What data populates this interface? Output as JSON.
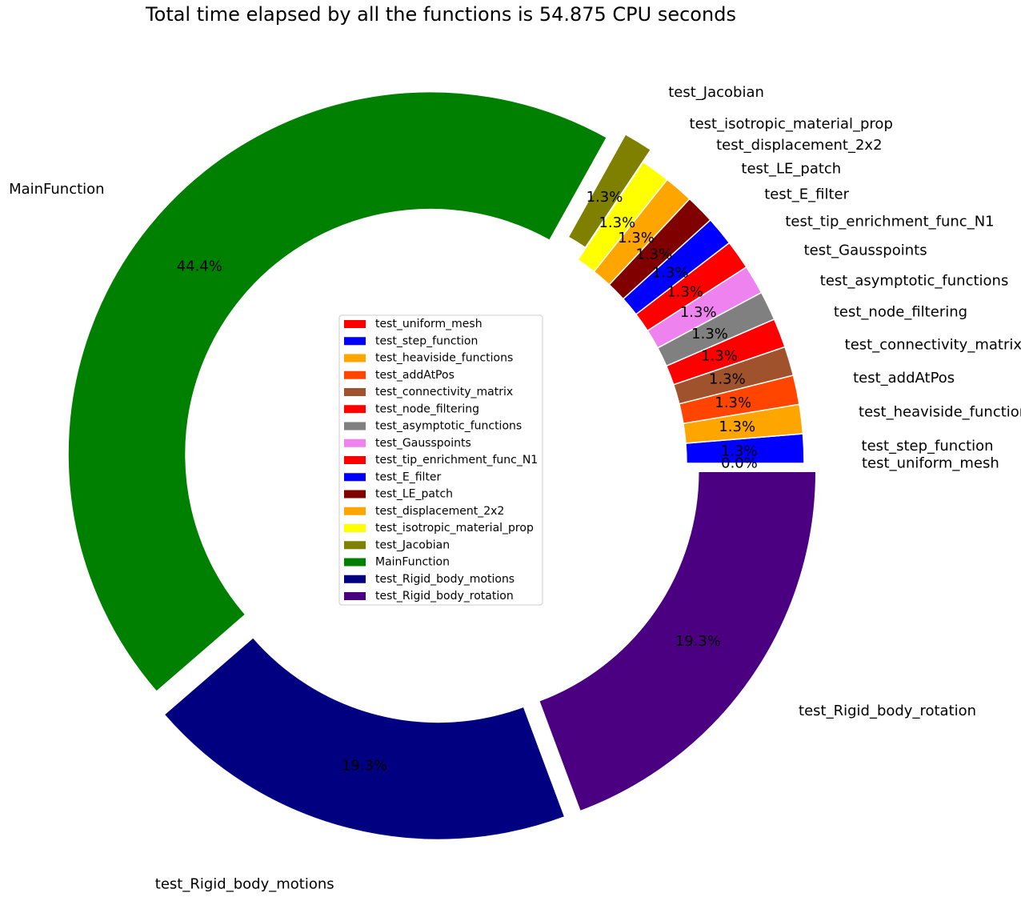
{
  "chart_data": {
    "type": "pie",
    "variant": "donut",
    "title": "Total time elapsed by all the functions is 54.875 CPU seconds",
    "legend_location": "center",
    "start_angle_deg": 0,
    "direction": "counterclockwise",
    "slices": [
      {
        "label": "test_uniform_mesh",
        "percent": 0.0,
        "percent_label": "0.0%",
        "color": "#ff0000",
        "exploded": false
      },
      {
        "label": "test_step_function",
        "percent": 1.3,
        "percent_label": "1.3%",
        "color": "#0000ff",
        "exploded": false
      },
      {
        "label": "test_heaviside_functions",
        "percent": 1.3,
        "percent_label": "1.3%",
        "color": "#ffa500",
        "exploded": false
      },
      {
        "label": "test_addAtPos",
        "percent": 1.3,
        "percent_label": "1.3%",
        "color": "#ff4500",
        "exploded": false
      },
      {
        "label": "test_connectivity_matrix",
        "percent": 1.3,
        "percent_label": "1.3%",
        "color": "#a0522d",
        "exploded": false
      },
      {
        "label": "test_node_filtering",
        "percent": 1.3,
        "percent_label": "1.3%",
        "color": "#ff0000",
        "exploded": false
      },
      {
        "label": "test_asymptotic_functions",
        "percent": 1.3,
        "percent_label": "1.3%",
        "color": "#808080",
        "exploded": false
      },
      {
        "label": "test_Gausspoints",
        "percent": 1.3,
        "percent_label": "1.3%",
        "color": "#ee82ee",
        "exploded": false
      },
      {
        "label": "test_tip_enrichment_func_N1",
        "percent": 1.3,
        "percent_label": "1.3%",
        "color": "#ff0000",
        "exploded": false
      },
      {
        "label": "test_E_filter",
        "percent": 1.3,
        "percent_label": "1.3%",
        "color": "#0000ff",
        "exploded": false
      },
      {
        "label": "test_LE_patch",
        "percent": 1.3,
        "percent_label": "1.3%",
        "color": "#800000",
        "exploded": false
      },
      {
        "label": "test_displacement_2x2",
        "percent": 1.3,
        "percent_label": "1.3%",
        "color": "#ffa500",
        "exploded": false
      },
      {
        "label": "test_isotropic_material_prop",
        "percent": 1.3,
        "percent_label": "1.3%",
        "color": "#ffff00",
        "exploded": false
      },
      {
        "label": "test_Jacobian",
        "percent": 1.3,
        "percent_label": "1.3%",
        "color": "#808000",
        "exploded": true
      },
      {
        "label": "MainFunction",
        "percent": 44.4,
        "percent_label": "44.4%",
        "color": "#008000",
        "exploded": true
      },
      {
        "label": "test_Rigid_body_motions",
        "percent": 19.3,
        "percent_label": "19.3%",
        "color": "#000080",
        "exploded": true
      },
      {
        "label": "test_Rigid_body_rotation",
        "percent": 19.3,
        "percent_label": "19.3%",
        "color": "#4b0082",
        "exploded": true
      }
    ]
  }
}
